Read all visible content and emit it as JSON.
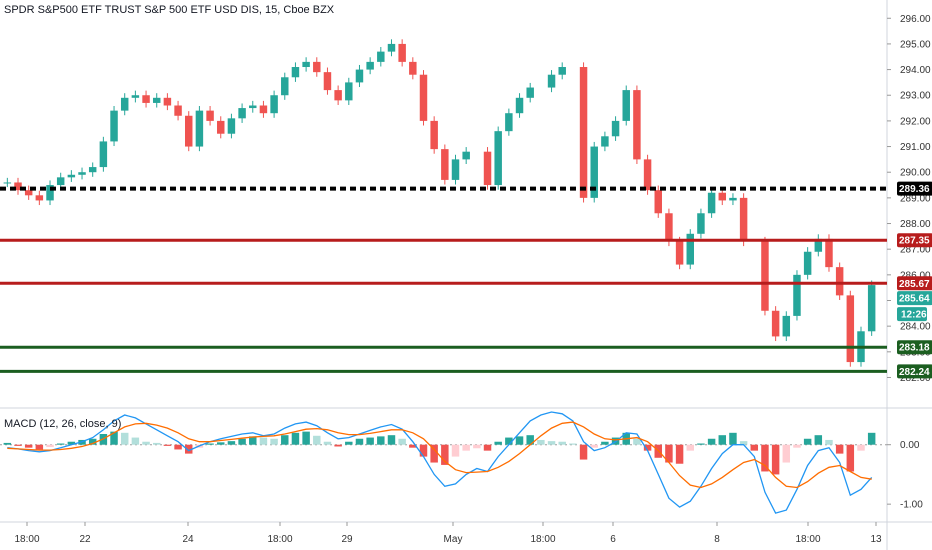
{
  "header": {
    "title": "SPDR S&P500 ETF TRUST S&P 500 ETF USD DIS, 15, Cboe BZX",
    "macd_label": "MACD (12, 26, close, 9)"
  },
  "colors": {
    "up": "#26a69a",
    "down": "#ef5350",
    "black_line": "#000000",
    "red_line": "#b71c1c",
    "green_line": "#1b5e20",
    "macd_line": "#2196f3",
    "signal_line": "#ff6d00",
    "price_tag": "#26a69a"
  },
  "chart_data": [
    {
      "type": "candlestick",
      "title": "SPDR S&P500 ETF TRUST S&P 500 ETF USD DIS, 15, Cboe BZX",
      "ylim": [
        281.2,
        296.4
      ],
      "yticks": [
        "296.00",
        "295.00",
        "294.00",
        "293.00",
        "292.00",
        "291.00",
        "290.00",
        "289.00",
        "288.00",
        "287.00",
        "286.00",
        "285.00",
        "284.00",
        "283.00",
        "282.00"
      ],
      "xticks": [
        "18:00",
        "22",
        "18:00",
        "24",
        "18:00",
        "29",
        "May",
        "18:00",
        "6",
        "8",
        "18:00",
        "13"
      ],
      "close_series": [
        289.6,
        289.3,
        289.1,
        288.9,
        289.5,
        289.8,
        289.9,
        290.0,
        290.2,
        291.2,
        292.4,
        292.9,
        293.0,
        292.7,
        292.9,
        292.6,
        292.2,
        291.0,
        292.4,
        292.0,
        291.5,
        292.1,
        292.5,
        292.6,
        292.3,
        293.0,
        293.7,
        294.1,
        294.3,
        293.9,
        293.2,
        292.8,
        293.5,
        294.0,
        294.3,
        294.7,
        295.0,
        294.3,
        293.8,
        292.0,
        290.9,
        289.7,
        290.5,
        290.8,
        null,
        289.5,
        291.6,
        292.3,
        292.9,
        293.3,
        null,
        293.8,
        294.1,
        null,
        289.0,
        291.0,
        291.4,
        292.0,
        293.2,
        290.5,
        289.3,
        288.4,
        287.3,
        286.4,
        287.6,
        288.4,
        289.2,
        288.9,
        289.0,
        287.3,
        null,
        284.6,
        283.6,
        284.4,
        286.0,
        286.9,
        287.4,
        286.3,
        285.2,
        282.6,
        283.8,
        285.6
      ],
      "price_lines": [
        {
          "value": 289.36,
          "label": "289.36",
          "style": "dashed",
          "color": "#000000"
        },
        {
          "value": 287.35,
          "label": "287.35",
          "style": "solid",
          "color": "#b71c1c"
        },
        {
          "value": 285.67,
          "label": "285.67",
          "style": "solid",
          "color": "#b71c1c"
        },
        {
          "value": 283.18,
          "label": "283.18",
          "style": "solid",
          "color": "#1b5e20"
        },
        {
          "value": 282.24,
          "label": "282.24",
          "style": "solid",
          "color": "#1b5e20"
        }
      ],
      "last_price": "285.64",
      "countdown": "12:26"
    },
    {
      "type": "bar",
      "title": "MACD (12, 26, close, 9)",
      "ylim": [
        -1.3,
        0.55
      ],
      "yticks": [
        "0.00",
        "-1.00"
      ],
      "series": [
        {
          "name": "Histogram",
          "values": [
            0.03,
            -0.02,
            -0.05,
            -0.08,
            -0.04,
            0.02,
            0.05,
            0.08,
            0.1,
            0.18,
            0.22,
            0.2,
            0.12,
            0.05,
            0.03,
            -0.02,
            -0.08,
            -0.15,
            -0.05,
            0.02,
            0.04,
            0.06,
            0.1,
            0.14,
            0.12,
            0.1,
            0.16,
            0.2,
            0.22,
            0.15,
            0.05,
            -0.03,
            0.05,
            0.1,
            0.12,
            0.14,
            0.16,
            0.1,
            -0.05,
            -0.2,
            -0.3,
            -0.34,
            -0.2,
            -0.1,
            -0.06,
            -0.1,
            0.05,
            0.12,
            0.14,
            0.16,
            0.08,
            0.06,
            0.05,
            0.02,
            -0.25,
            -0.05,
            0.05,
            0.12,
            0.2,
            0.1,
            -0.1,
            -0.22,
            -0.3,
            -0.32,
            -0.1,
            0.02,
            0.1,
            0.16,
            0.2,
            0.06,
            -0.1,
            -0.45,
            -0.5,
            -0.3,
            -0.05,
            0.1,
            0.16,
            0.08,
            -0.15,
            -0.45,
            -0.1,
            0.2
          ]
        },
        {
          "name": "MACD",
          "values": [
            -0.05,
            -0.07,
            -0.1,
            -0.12,
            -0.1,
            -0.05,
            0.0,
            0.05,
            0.12,
            0.25,
            0.4,
            0.5,
            0.45,
            0.35,
            0.25,
            0.15,
            0.05,
            -0.1,
            -0.02,
            0.05,
            0.1,
            0.14,
            0.18,
            0.2,
            0.15,
            0.18,
            0.28,
            0.35,
            0.38,
            0.32,
            0.2,
            0.1,
            0.12,
            0.18,
            0.24,
            0.3,
            0.34,
            0.26,
            0.05,
            -0.2,
            -0.5,
            -0.7,
            -0.66,
            -0.5,
            -0.4,
            -0.45,
            -0.2,
            0.0,
            0.2,
            0.4,
            0.5,
            0.55,
            0.52,
            0.4,
            0.05,
            -0.1,
            -0.05,
            0.05,
            0.2,
            0.18,
            -0.1,
            -0.5,
            -0.9,
            -1.05,
            -0.95,
            -0.7,
            -0.4,
            -0.15,
            0.0,
            0.0,
            -0.2,
            -0.8,
            -1.15,
            -1.1,
            -0.75,
            -0.35,
            -0.1,
            -0.05,
            -0.3,
            -0.85,
            -0.75,
            -0.55
          ]
        },
        {
          "name": "Signal",
          "values": [
            -0.06,
            -0.07,
            -0.08,
            -0.09,
            -0.09,
            -0.08,
            -0.06,
            -0.03,
            0.02,
            0.1,
            0.2,
            0.3,
            0.35,
            0.36,
            0.33,
            0.28,
            0.2,
            0.1,
            0.05,
            0.05,
            0.07,
            0.09,
            0.11,
            0.13,
            0.14,
            0.15,
            0.18,
            0.22,
            0.26,
            0.27,
            0.25,
            0.2,
            0.17,
            0.17,
            0.19,
            0.22,
            0.25,
            0.25,
            0.2,
            0.1,
            -0.08,
            -0.28,
            -0.42,
            -0.47,
            -0.46,
            -0.45,
            -0.38,
            -0.28,
            -0.15,
            0.0,
            0.15,
            0.28,
            0.36,
            0.38,
            0.3,
            0.18,
            0.1,
            0.08,
            0.1,
            0.12,
            0.05,
            -0.1,
            -0.3,
            -0.52,
            -0.68,
            -0.72,
            -0.66,
            -0.55,
            -0.42,
            -0.3,
            -0.25,
            -0.35,
            -0.55,
            -0.7,
            -0.72,
            -0.62,
            -0.48,
            -0.38,
            -0.35,
            -0.45,
            -0.55,
            -0.58
          ]
        }
      ]
    }
  ]
}
